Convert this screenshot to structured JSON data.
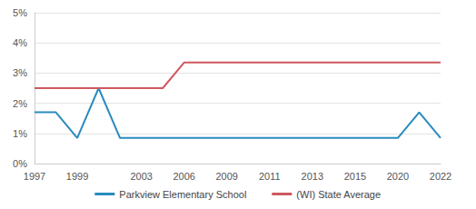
{
  "chart_data": {
    "type": "line",
    "categories": [
      "1997",
      null,
      "1999",
      null,
      null,
      "2003",
      null,
      "2006",
      null,
      "2009",
      null,
      "2011",
      null,
      "2013",
      null,
      "2015",
      null,
      "2020",
      null,
      "2022"
    ],
    "series": [
      {
        "name": "Parkview Elementary School",
        "color": "#2a8bbf",
        "values": [
          1.7,
          1.7,
          0.85,
          2.5,
          0.85,
          0.85,
          0.85,
          0.85,
          0.85,
          0.85,
          0.85,
          0.85,
          0.85,
          0.85,
          0.85,
          0.85,
          0.85,
          0.85,
          1.7,
          0.85
        ]
      },
      {
        "name": "(WI) State Average",
        "color": "#d0585f",
        "values": [
          2.5,
          2.5,
          2.5,
          2.5,
          2.5,
          2.5,
          2.5,
          3.35,
          3.35,
          3.35,
          3.35,
          3.35,
          3.35,
          3.35,
          3.35,
          3.35,
          3.35,
          3.35,
          3.35,
          3.35
        ]
      }
    ],
    "ylim": [
      0,
      5
    ],
    "yticks": [
      {
        "value": 0,
        "label": "0%"
      },
      {
        "value": 1,
        "label": "1%"
      },
      {
        "value": 2,
        "label": "2%"
      },
      {
        "value": 3,
        "label": "3%"
      },
      {
        "value": 4,
        "label": "4%"
      },
      {
        "value": 5,
        "label": "5%"
      }
    ],
    "grid": true,
    "legend": "bottom"
  }
}
